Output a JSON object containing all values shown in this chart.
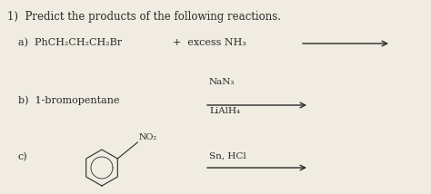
{
  "title": "1)  Predict the products of the following reactions.",
  "bg_color": "#f0ece2",
  "text_color": "#2a2a2a",
  "title_fontsize": 8.5,
  "label_fontsize": 8.0,
  "small_fontsize": 7.5,
  "reaction_a_label": "a)  PhCH₂CH₂CH₂Br",
  "reaction_a_reagent": "+  excess NH₃",
  "reaction_b_label": "b)  1-bromopentane",
  "reaction_b_above": "NaN₃",
  "reaction_b_below": "LiAlH₄",
  "reaction_c_label": "c)",
  "reaction_c_no2": "NO₂",
  "reaction_c_above": "Sn, HCl",
  "arrow_color": "#2a2a2a",
  "font_family": "DejaVu Serif"
}
